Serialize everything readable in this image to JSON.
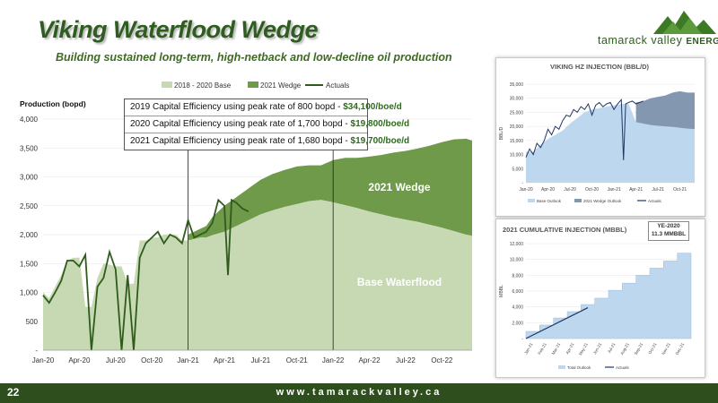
{
  "slide": {
    "title": "Viking Waterflood Wedge",
    "subtitle": "Building sustained long-term, high-netback and low-decline oil production",
    "page_number": "22",
    "url": "www.tamarackvalley.ca",
    "logo_text": "tamarack valley",
    "logo_suffix": "ENERGY"
  },
  "colors": {
    "base": "#c6d9b3",
    "wedge": "#6e9a4a",
    "actuals": "#2f5b1d",
    "brand": "#2e5d1f",
    "footer": "#2e4f1d",
    "inj_hist": "#bdd7ee",
    "inj_wedge": "#8497b0",
    "inj_actual": "#203864"
  },
  "annotations": [
    {
      "text": "2019 Capital Efficiency using peak rate of 800 bopd - ",
      "value": "$34,100/boe/d"
    },
    {
      "text": "2020 Capital Efficiency using peak rate of 1,700 bopd - ",
      "value": "$19,800/boe/d"
    },
    {
      "text": "2021 Capital Efficiency using peak rate of 1,680 bopd - ",
      "value": "$19,700/boe/d"
    }
  ],
  "chart_data": [
    {
      "type": "area",
      "ylabel": "Production (bopd)",
      "ylim": [
        0,
        4000
      ],
      "yticks": [
        "-",
        "500",
        "1,000",
        "1,500",
        "2,000",
        "2,500",
        "3,000",
        "3,500",
        "4,000"
      ],
      "xticks": [
        "Jan-20",
        "Apr-20",
        "Jul-20",
        "Oct-20",
        "Jan-21",
        "Apr-21",
        "Jul-21",
        "Oct-21",
        "Jan-22",
        "Apr-22",
        "Jul-22",
        "Oct-22"
      ],
      "legend": [
        "2018 - 2020 Base",
        "2021 Wedge",
        "Actuals"
      ],
      "area_labels": {
        "wedge": "2021 Wedge",
        "base": "Base Waterflood"
      },
      "series": [
        {
          "name": "2018 - 2020 Base",
          "x": [
            0,
            0.5,
            1,
            1.5,
            2,
            2.5,
            3,
            3.5,
            4,
            4.5,
            5,
            5.5,
            6,
            6.5,
            7,
            7.5,
            8,
            8.5,
            9,
            9.5,
            10,
            10.5,
            11,
            11.5,
            12,
            13,
            13.5,
            14,
            15,
            16,
            17,
            18,
            19,
            20,
            21,
            22,
            23,
            24,
            25,
            26,
            27,
            28,
            29,
            30,
            31,
            32,
            33,
            34,
            35,
            35.5
          ],
          "values": [
            1000,
            900,
            1100,
            1300,
            1550,
            1600,
            1600,
            750,
            750,
            1250,
            1500,
            1480,
            1450,
            1450,
            1150,
            1150,
            1900,
            1900,
            1950,
            1950,
            2000,
            2000,
            2000,
            1900,
            1900,
            1950,
            1950,
            1990,
            2050,
            2150,
            2250,
            2350,
            2420,
            2480,
            2530,
            2580,
            2600,
            2560,
            2510,
            2460,
            2400,
            2350,
            2300,
            2260,
            2220,
            2170,
            2120,
            2060,
            2000,
            1980
          ]
        },
        {
          "name": "2021 Wedge",
          "x": [
            12,
            13,
            13.5,
            14,
            15,
            16,
            17,
            18,
            19,
            20,
            21,
            22,
            23,
            24,
            25,
            26,
            27,
            28,
            29,
            30,
            31,
            32,
            33,
            34,
            35,
            35.5
          ],
          "values": [
            2000,
            2100,
            2150,
            2300,
            2500,
            2650,
            2800,
            2950,
            3050,
            3120,
            3180,
            3200,
            3200,
            3290,
            3330,
            3330,
            3350,
            3380,
            3420,
            3450,
            3490,
            3540,
            3600,
            3650,
            3660,
            3630
          ]
        },
        {
          "name": "Actuals",
          "x": [
            0,
            0.5,
            1,
            1.5,
            2,
            2.5,
            3,
            3.5,
            4,
            4.5,
            5,
            5.5,
            6,
            6.5,
            7,
            7.5,
            8,
            8.5,
            9,
            9.5,
            10,
            10.5,
            11,
            11.5,
            12,
            12.5,
            13,
            13.5,
            14,
            14.5,
            15,
            15.3,
            15.6,
            16,
            16.5,
            17
          ],
          "values": [
            950,
            820,
            1000,
            1200,
            1550,
            1550,
            1450,
            1650,
            0,
            1100,
            1250,
            1700,
            1400,
            0,
            1300,
            0,
            1600,
            1850,
            1950,
            2050,
            1850,
            2000,
            1950,
            1850,
            2250,
            1950,
            2000,
            2050,
            2200,
            2600,
            2500,
            1300,
            2600,
            2550,
            2450,
            2400
          ]
        }
      ]
    },
    {
      "type": "area",
      "title": "VIKING HZ INJECTION (BBL/D)",
      "ylabel": "BBL/D",
      "ylim": [
        0,
        35000
      ],
      "yticks": [
        "-",
        "5,000",
        "10,000",
        "15,000",
        "20,000",
        "25,000",
        "30,000",
        "35,000"
      ],
      "xticks": [
        "Jan-20",
        "Apr-20",
        "Jul-20",
        "Oct-20",
        "Jan-21",
        "Apr-21",
        "Jul-21",
        "Oct-21"
      ],
      "legend": [
        "Base Outlook",
        "2021 Wedge Outlook",
        "Actuals"
      ],
      "series": [
        {
          "name": "Base Outlook",
          "x": [
            0,
            1,
            2,
            3,
            4,
            5,
            6,
            7,
            8,
            9,
            10,
            11,
            12,
            13,
            14,
            15,
            16,
            17,
            18,
            19,
            20,
            21,
            22,
            23
          ],
          "values": [
            11000,
            11000,
            13500,
            15500,
            17000,
            18500,
            21000,
            23000,
            25000,
            26000,
            26500,
            27000,
            27500,
            28000,
            28000,
            21500,
            21000,
            20500,
            20200,
            20000,
            19800,
            19500,
            19200,
            19000
          ]
        },
        {
          "name": "2021 Wedge Outlook",
          "x": [
            15,
            16,
            17,
            18,
            19,
            20,
            21,
            22,
            23
          ],
          "values": [
            28500,
            29000,
            30000,
            30500,
            31000,
            32000,
            32500,
            32000,
            32000
          ]
        },
        {
          "name": "Actuals",
          "x": [
            0,
            0.5,
            1,
            1.5,
            2,
            2.5,
            3,
            3.5,
            4,
            4.5,
            5,
            5.5,
            6,
            6.5,
            7,
            7.5,
            8,
            8.5,
            9,
            9.5,
            10,
            10.5,
            11,
            11.5,
            12,
            12.5,
            13,
            13.3,
            13.6,
            14,
            14.5,
            15,
            15.5,
            16
          ],
          "values": [
            9000,
            12000,
            10000,
            14000,
            12500,
            15000,
            19000,
            17000,
            20000,
            19000,
            22000,
            24000,
            23500,
            26000,
            25000,
            27000,
            26000,
            28000,
            24000,
            27500,
            28500,
            27000,
            28000,
            28500,
            26000,
            28000,
            29500,
            8000,
            28000,
            28500,
            29000,
            28000,
            28500,
            29000
          ]
        }
      ]
    },
    {
      "type": "area",
      "title": "2021 CUMULATIVE INJECTION (MBBL)",
      "ylabel": "MBBL",
      "ylim": [
        0,
        12000
      ],
      "yticks": [
        "-",
        "2,000",
        "4,000",
        "6,000",
        "8,000",
        "10,000",
        "12,000"
      ],
      "xticks": [
        "Jan-21",
        "Feb-21",
        "Mar-21",
        "Apr-21",
        "May-21",
        "Jun-21",
        "Jul-21",
        "Aug-21",
        "Sep-21",
        "Oct-21",
        "Nov-21",
        "Dec-21"
      ],
      "legend": [
        "Total Outlook",
        "Actuals"
      ],
      "annotation": [
        "YE-2020",
        "11.3 MMBBL"
      ],
      "series": [
        {
          "name": "Total Outlook",
          "x": [
            0,
            1,
            2,
            3,
            4,
            5,
            6,
            7,
            8,
            9,
            10,
            11,
            12
          ],
          "values": [
            0,
            900,
            1700,
            2600,
            3400,
            4300,
            5100,
            6100,
            7000,
            8000,
            8900,
            9800,
            10800
          ]
        },
        {
          "name": "Actuals",
          "x": [
            0,
            4.5
          ],
          "values": [
            0,
            3900
          ]
        }
      ]
    }
  ]
}
